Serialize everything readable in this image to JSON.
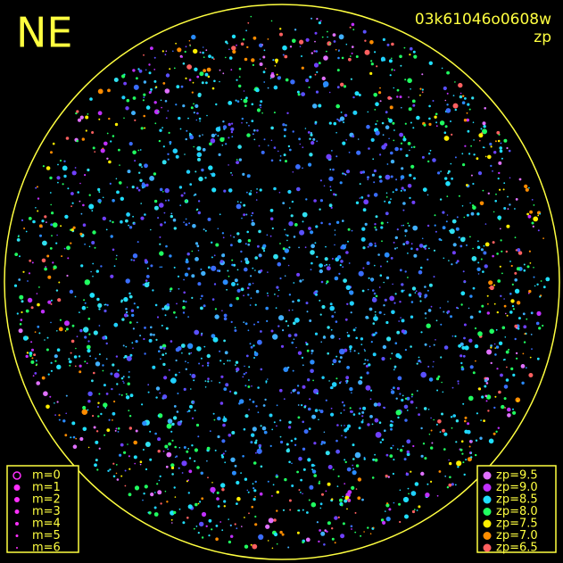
{
  "header": {
    "direction": "NE",
    "frame_id": "03k61046o0608w",
    "mode": "zp"
  },
  "legend_magnitude": {
    "items": [
      "m=0",
      "m=1",
      "m=2",
      "m=3",
      "m=4",
      "m=5",
      "m=6"
    ]
  },
  "legend_zp": {
    "items": [
      {
        "label": "zp=9.5",
        "color": "#e070ff"
      },
      {
        "label": "zp=9.0",
        "color": "#c030ff"
      },
      {
        "label": "zp=8.5",
        "color": "#20e0ff"
      },
      {
        "label": "zp=8.0",
        "color": "#20ff60"
      },
      {
        "label": "zp=7.5",
        "color": "#ffee00"
      },
      {
        "label": "zp=7.0",
        "color": "#ff8c00"
      },
      {
        "label": "zp=6.5",
        "color": "#ff6060"
      }
    ]
  }
}
